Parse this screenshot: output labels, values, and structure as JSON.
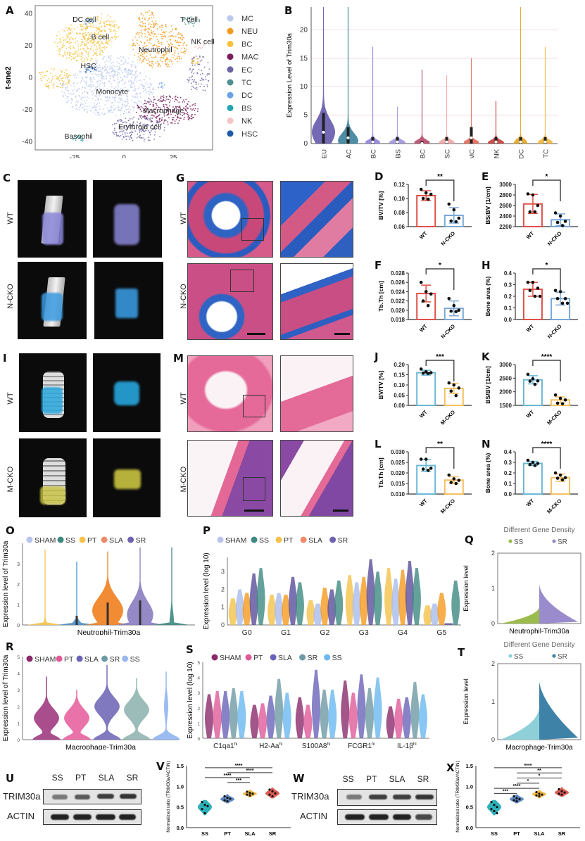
{
  "panels": {
    "A": "A",
    "B": "B",
    "C": "C",
    "D": "D",
    "E": "E",
    "F": "F",
    "G": "G",
    "H": "H",
    "I": "I",
    "J": "J",
    "K": "K",
    "L": "L",
    "M": "M",
    "N": "N",
    "O": "O",
    "P": "P",
    "Q": "Q",
    "R": "R",
    "S": "S",
    "T": "T",
    "U": "U",
    "V": "V",
    "W": "W",
    "X": "X"
  },
  "imaging": {
    "C_rows": [
      "WT",
      "N-CKO"
    ],
    "I_rows": [
      "WT",
      "M-CKO"
    ],
    "G_rows": [
      "WT",
      "N-CKO"
    ],
    "M_rows": [
      "WT",
      "M-CKO"
    ]
  },
  "western": {
    "U": {
      "lanes": [
        "SS",
        "PT",
        "SLA",
        "SR"
      ],
      "rows": [
        "TRIM30a",
        "ACTIN"
      ]
    },
    "W": {
      "lanes": [
        "SS",
        "PT",
        "SLA",
        "SR"
      ],
      "rows": [
        "TRIM30a",
        "ACTIN"
      ]
    }
  },
  "chart_data": [
    {
      "id": "A",
      "type": "scatter",
      "title": "",
      "xlabel": "t-sne1",
      "ylabel": "t-sne2",
      "xlim": [
        -45,
        45
      ],
      "ylim": [
        -45,
        45
      ],
      "xticks": [
        -25,
        0,
        25
      ],
      "yticks": [
        -40,
        -20,
        0,
        20,
        40
      ],
      "legend": [
        {
          "name": "MC",
          "color": "#b9c8ec"
        },
        {
          "name": "NEU",
          "color": "#f39a1e"
        },
        {
          "name": "BC",
          "color": "#f6c23e"
        },
        {
          "name": "MAC",
          "color": "#7a1f5c"
        },
        {
          "name": "EC",
          "color": "#6a64a4"
        },
        {
          "name": "TC",
          "color": "#4f8f8f"
        },
        {
          "name": "DC",
          "color": "#6aa0e6"
        },
        {
          "name": "BS",
          "color": "#23a6b0"
        },
        {
          "name": "NK",
          "color": "#f5c4c4"
        },
        {
          "name": "HSC",
          "color": "#1d5aa8"
        }
      ],
      "legend_position": "right",
      "clusters": [
        {
          "label": "DC cell",
          "x": -20,
          "y": 35
        },
        {
          "label": "B cell",
          "x": -12,
          "y": 24
        },
        {
          "label": "T cell",
          "x": 33,
          "y": 35
        },
        {
          "label": "NK cell",
          "x": 40,
          "y": 21
        },
        {
          "label": "Neutrophil",
          "x": 16,
          "y": 16
        },
        {
          "label": "HSC",
          "x": -18,
          "y": 6
        },
        {
          "label": "Monocyte",
          "x": -6,
          "y": -10
        },
        {
          "label": "Macrophage",
          "x": 20,
          "y": -22
        },
        {
          "label": "Erythroid cell",
          "x": 8,
          "y": -32
        },
        {
          "label": "Basophil",
          "x": -23,
          "y": -38
        }
      ]
    },
    {
      "id": "B",
      "type": "violin",
      "ylabel": "Expression Level of Trim30a",
      "ylim": [
        0,
        24
      ],
      "yticks": [
        0,
        5,
        10,
        15,
        20
      ],
      "categories": [
        "NEU",
        "MAC",
        "BC",
        "BS",
        "RBC",
        "HSC",
        "MC",
        "NK",
        "DC",
        "TC"
      ],
      "max": [
        24,
        24,
        17,
        6.5,
        13,
        12,
        15,
        7.5,
        24,
        17
      ],
      "median": [
        2,
        1,
        0.3,
        0.3,
        0,
        0.3,
        1,
        0.3,
        0.3,
        0.3
      ],
      "colors": [
        "#5a4fa8",
        "#2e7a96",
        "#8a7ad8",
        "#9a8ed8",
        "#b04060",
        "#f0a0a0",
        "#e06050",
        "#c0302a",
        "#e0a010",
        "#f0b030"
      ]
    },
    {
      "id": "D",
      "type": "bar",
      "ylabel": "BV/TV [%]",
      "significance": "**",
      "categories": [
        "WT",
        "N-CKO"
      ],
      "values": [
        0.104,
        0.076
      ],
      "errors": [
        0.007,
        0.011
      ],
      "points": [
        [
          0.113,
          0.108,
          0.106,
          0.1,
          0.099
        ],
        [
          0.092,
          0.084,
          0.072,
          0.068,
          0.067
        ]
      ],
      "ylim": [
        0.06,
        0.12
      ],
      "yticks": [
        0.06,
        0.08,
        0.1,
        0.12
      ],
      "tickfmt": 2,
      "colors": [
        "#e0504a",
        "#7aa8d8"
      ]
    },
    {
      "id": "E",
      "type": "bar",
      "ylabel": "BS/BV [1/cm]",
      "significance": "*",
      "categories": [
        "WT",
        "N-CKO"
      ],
      "values": [
        2630,
        2330
      ],
      "errors": [
        180,
        110
      ],
      "points": [
        [
          2820,
          2800,
          2600,
          2480,
          2480
        ],
        [
          2460,
          2400,
          2300,
          2280,
          2220
        ]
      ],
      "ylim": [
        2200,
        3000
      ],
      "yticks": [
        2200,
        2400,
        2600,
        2800,
        3000
      ],
      "tickfmt": 0,
      "colors": [
        "#e0504a",
        "#7aa8d8"
      ]
    },
    {
      "id": "F",
      "type": "bar",
      "ylabel": "Tb.Th [cm]",
      "significance": "*",
      "categories": [
        "WT",
        "N-CKO"
      ],
      "values": [
        0.0236,
        0.0204
      ],
      "errors": [
        0.0018,
        0.0016
      ],
      "points": [
        [
          0.026,
          0.024,
          0.0235,
          0.022,
          0.021
        ],
        [
          0.0225,
          0.021,
          0.02,
          0.0198,
          0.0197
        ]
      ],
      "ylim": [
        0.018,
        0.028
      ],
      "yticks": [
        0.018,
        0.02,
        0.022,
        0.024,
        0.026,
        0.028
      ],
      "tickfmt": 3,
      "colors": [
        "#e0504a",
        "#7aa8d8"
      ]
    },
    {
      "id": "H",
      "type": "bar",
      "ylabel": "Bone area (%)",
      "significance": "*",
      "categories": [
        "WT",
        "N-CKO"
      ],
      "values": [
        0.26,
        0.18
      ],
      "errors": [
        0.06,
        0.055
      ],
      "points": [
        [
          0.32,
          0.32,
          0.27,
          0.25,
          0.2,
          0.2
        ],
        [
          0.25,
          0.24,
          0.18,
          0.18,
          0.14,
          0.14
        ]
      ],
      "ylim": [
        0.0,
        0.4
      ],
      "yticks": [
        0.0,
        0.1,
        0.2,
        0.3,
        0.4
      ],
      "tickfmt": 1,
      "colors": [
        "#e0504a",
        "#7aa8d8"
      ]
    },
    {
      "id": "J",
      "type": "bar",
      "ylabel": "BV/TV [%]",
      "significance": "***",
      "categories": [
        "WT",
        "M-CKO"
      ],
      "values": [
        0.16,
        0.083
      ],
      "errors": [
        0.012,
        0.025
      ],
      "points": [
        [
          0.178,
          0.165,
          0.16,
          0.158,
          0.156
        ],
        [
          0.11,
          0.1,
          0.085,
          0.07,
          0.048
        ]
      ],
      "ylim": [
        0.0,
        0.2
      ],
      "yticks": [
        0.0,
        0.05,
        0.1,
        0.15,
        0.2
      ],
      "tickfmt": 2,
      "colors": [
        "#6ab8d8",
        "#f5c060"
      ]
    },
    {
      "id": "K",
      "type": "bar",
      "ylabel": "BS/BV [1/cm]",
      "significance": "****",
      "categories": [
        "WT",
        "M-CKO"
      ],
      "values": [
        2440,
        1700
      ],
      "errors": [
        150,
        110
      ],
      "points": [
        [
          2640,
          2480,
          2400,
          2390,
          2270
        ],
        [
          1880,
          1760,
          1700,
          1580,
          1560
        ]
      ],
      "ylim": [
        1500,
        3000
      ],
      "yticks": [
        1500,
        2000,
        2500,
        3000
      ],
      "tickfmt": 0,
      "colors": [
        "#6ab8d8",
        "#f5c060"
      ]
    },
    {
      "id": "L",
      "type": "bar",
      "ylabel": "Tb.Th [cm]",
      "significance": "**",
      "categories": [
        "WT",
        "M-CKO"
      ],
      "values": [
        0.0235,
        0.0166
      ],
      "errors": [
        0.0028,
        0.0016
      ],
      "points": [
        [
          0.0265,
          0.0265,
          0.0222,
          0.0218,
          0.0212
        ],
        [
          0.019,
          0.0172,
          0.0165,
          0.0155,
          0.015
        ]
      ],
      "ylim": [
        0.01,
        0.03
      ],
      "yticks": [
        0.01,
        0.015,
        0.02,
        0.025,
        0.03
      ],
      "tickfmt": 3,
      "colors": [
        "#6ab8d8",
        "#f5c060"
      ]
    },
    {
      "id": "N",
      "type": "bar",
      "ylabel": "Bone area (%)",
      "significance": "****",
      "categories": [
        "WT",
        "M-CKO"
      ],
      "values": [
        0.29,
        0.155
      ],
      "errors": [
        0.02,
        0.035
      ],
      "points": [
        [
          0.32,
          0.3,
          0.29,
          0.28,
          0.27
        ],
        [
          0.2,
          0.18,
          0.155,
          0.15,
          0.135
        ]
      ],
      "ylim": [
        0.0,
        0.4
      ],
      "yticks": [
        0.0,
        0.1,
        0.2,
        0.3,
        0.4
      ],
      "tickfmt": 1,
      "colors": [
        "#6ab8d8",
        "#f5c060"
      ]
    },
    {
      "id": "O",
      "type": "violin",
      "ylabel": "Expression level of Trim30a",
      "xlabel": "Neutrophil-Trim30a",
      "ylim": [
        0,
        4
      ],
      "yticks": [
        0,
        1,
        2,
        3
      ],
      "legend": [
        {
          "name": "SHAM",
          "color": "#b8c4ec"
        },
        {
          "name": "SS",
          "color": "#3e8a82"
        },
        {
          "name": "PT",
          "color": "#f5c24a"
        },
        {
          "name": "SLA",
          "color": "#f08a6a"
        },
        {
          "name": "SR",
          "color": "#6f63b0"
        }
      ],
      "violins": [
        {
          "color": "#f5c24a",
          "max": 3.7,
          "width": 0.15
        },
        {
          "color": "#4a8ec6",
          "max": 3.1,
          "width": 0.35
        },
        {
          "color": "#f07e1e",
          "max": 3.6,
          "width": 1.0
        },
        {
          "color": "#8a7cc0",
          "max": 3.8,
          "width": 0.85
        },
        {
          "color": "#3e8a82",
          "max": 3.8,
          "width": 0.15
        }
      ]
    },
    {
      "id": "P",
      "type": "violin",
      "ylabel": "Expression level (log 10)",
      "ylim": [
        0,
        3.8
      ],
      "yticks": [
        0,
        1,
        2,
        3
      ],
      "categories": [
        "G0",
        "G1",
        "G2",
        "G3",
        "G4",
        "G5"
      ],
      "legend": [
        {
          "name": "SHAM",
          "color": "#b8c4ec"
        },
        {
          "name": "SS",
          "color": "#3e8a82"
        },
        {
          "name": "PT",
          "color": "#f5c24a"
        },
        {
          "name": "SLA",
          "color": "#f08a6a"
        },
        {
          "name": "SR",
          "color": "#6f63b0"
        }
      ],
      "group_max": [
        [
          1.5,
          2.0,
          1.8,
          2.9,
          3.2
        ],
        [
          1.7,
          1.8,
          1.7,
          2.7,
          2.4
        ],
        [
          1.4,
          1.2,
          2.1,
          2.0,
          2.5
        ],
        [
          2.8,
          2.4,
          2.7,
          3.7,
          3.0
        ],
        [
          3.2,
          2.6,
          3.1,
          3.6,
          3.2
        ],
        [
          1.1,
          1.2,
          1.8,
          0.1,
          2.5
        ]
      ]
    },
    {
      "id": "Q",
      "type": "area",
      "title": "Different Gene Density",
      "ylabel": "Expression level",
      "xlabel": "Neutrophil-Trim30a",
      "ylim": [
        0,
        2
      ],
      "yticks": [
        0,
        1,
        2
      ],
      "legend": [
        {
          "name": "SS",
          "color": "#9bbb4c"
        },
        {
          "name": "SR",
          "color": "#9a8ccc"
        }
      ]
    },
    {
      "id": "R",
      "type": "violin",
      "ylabel": "Expression level of Trim30a",
      "xlabel": "Macrophage-Trim30a",
      "ylim": [
        0,
        5
      ],
      "yticks": [
        0,
        1,
        2,
        3,
        4,
        5
      ],
      "legend": [
        {
          "name": "SHAM",
          "color": "#8a2a6a"
        },
        {
          "name": "PT",
          "color": "#e05a98"
        },
        {
          "name": "SLA",
          "color": "#6a64b8"
        },
        {
          "name": "SR",
          "color": "#6e9aa4"
        },
        {
          "name": "SS",
          "color": "#9ab8f0"
        }
      ],
      "violins": [
        {
          "color": "#9a2e78",
          "max": 3.8,
          "bulge": 1.3
        },
        {
          "color": "#e55a9a",
          "max": 3.0,
          "bulge": 1.3
        },
        {
          "color": "#6a62b4",
          "max": 4.5,
          "bulge": 2.0
        },
        {
          "color": "#8ab0ac",
          "max": 3.7,
          "bulge": 1.8
        },
        {
          "color": "#8ab0f0",
          "max": 4.1,
          "bulge": 0.2
        }
      ]
    },
    {
      "id": "S",
      "type": "violin",
      "ylabel": "Expression level (log 10)",
      "ylim": [
        0,
        5
      ],
      "yticks": [
        0,
        1,
        2,
        3,
        4,
        5
      ],
      "categories": [
        "C1qa1hi",
        "H2-Aahi",
        "S100A8hi",
        "FCGR1hi",
        "IL-1βhi"
      ],
      "category_names": [
        "C1qa1",
        "H2-Aa",
        "S100A8",
        "FCGR1",
        "IL-1β"
      ],
      "category_sup": "hi",
      "legend": [
        {
          "name": "SHAM",
          "color": "#8a2a6a"
        },
        {
          "name": "PT",
          "color": "#e05a98"
        },
        {
          "name": "SLA",
          "color": "#6a64b8"
        },
        {
          "name": "SR",
          "color": "#6e9aa4"
        },
        {
          "name": "SS",
          "color": "#6ab8f0"
        }
      ],
      "group_max": [
        [
          2.9,
          3.1,
          3.1,
          3.3,
          3.1
        ],
        [
          2.2,
          2.3,
          2.8,
          3.9,
          3.0
        ],
        [
          2.7,
          2.2,
          4.5,
          3.2,
          3.2
        ],
        [
          3.8,
          3.0,
          4.2,
          3.3,
          4.0
        ],
        [
          2.1,
          2.6,
          2.7,
          3.7,
          2.9
        ]
      ]
    },
    {
      "id": "T",
      "type": "area",
      "title": "Different Gene Density",
      "ylabel": "Expression level",
      "xlabel": "Macrophage-Trim30a",
      "ylim": [
        0,
        2
      ],
      "yticks": [
        0,
        1,
        2
      ],
      "legend": [
        {
          "name": "SS",
          "color": "#8fd0d8"
        },
        {
          "name": "SR",
          "color": "#3e82a8"
        }
      ]
    },
    {
      "id": "V",
      "type": "violin",
      "ylabel": "Normalized ratio (TRIM30a/ACTIN)",
      "categories": [
        "SS",
        "PT",
        "SLA",
        "SR"
      ],
      "values": [
        0.5,
        0.69,
        0.82,
        0.83
      ],
      "points": [
        [
          0.62,
          0.55,
          0.52,
          0.45,
          0.35
        ],
        [
          0.76,
          0.72,
          0.7,
          0.66,
          0.64
        ],
        [
          0.87,
          0.84,
          0.82,
          0.8,
          0.78
        ],
        [
          0.92,
          0.88,
          0.83,
          0.8,
          0.76
        ]
      ],
      "ylim": [
        0,
        1.5
      ],
      "yticks": [
        0.0,
        0.5,
        1.0,
        1.5
      ],
      "colors": [
        "#18a8b0",
        "#4a7ab8",
        "#f0b030",
        "#d84a40"
      ],
      "comparisons": [
        {
          "from": 0,
          "to": 3,
          "label": "****"
        },
        {
          "from": 1,
          "to": 3,
          "label": "****"
        },
        {
          "from": 0,
          "to": 2,
          "label": "****"
        },
        {
          "from": 1,
          "to": 2,
          "label": "***"
        }
      ]
    },
    {
      "id": "X",
      "type": "violin",
      "ylabel": "Normalized ratio (TRIM30a/ACTIN)",
      "categories": [
        "SS",
        "PT",
        "SLA",
        "SR"
      ],
      "values": [
        0.5,
        0.69,
        0.81,
        0.85
      ],
      "points": [
        [
          0.62,
          0.55,
          0.5,
          0.45,
          0.4,
          0.35
        ],
        [
          0.76,
          0.71,
          0.69,
          0.66,
          0.64
        ],
        [
          0.86,
          0.82,
          0.8,
          0.78,
          0.76
        ],
        [
          0.93,
          0.88,
          0.85,
          0.82,
          0.8
        ]
      ],
      "ylim": [
        0,
        1.5
      ],
      "yticks": [
        0.0,
        0.5,
        1.0,
        1.5
      ],
      "colors": [
        "#18a8b0",
        "#4a7ab8",
        "#f0b030",
        "#d84a40"
      ],
      "comparisons": [
        {
          "from": 0,
          "to": 3,
          "label": "****"
        },
        {
          "from": 1,
          "to": 3,
          "label": "**"
        },
        {
          "from": 1,
          "to": 3,
          "label": "*"
        },
        {
          "from": 1,
          "to": 2,
          "label": "*"
        },
        {
          "from": 0,
          "to": 2,
          "label": "****"
        },
        {
          "from": 0,
          "to": 1,
          "label": "***"
        }
      ]
    }
  ]
}
